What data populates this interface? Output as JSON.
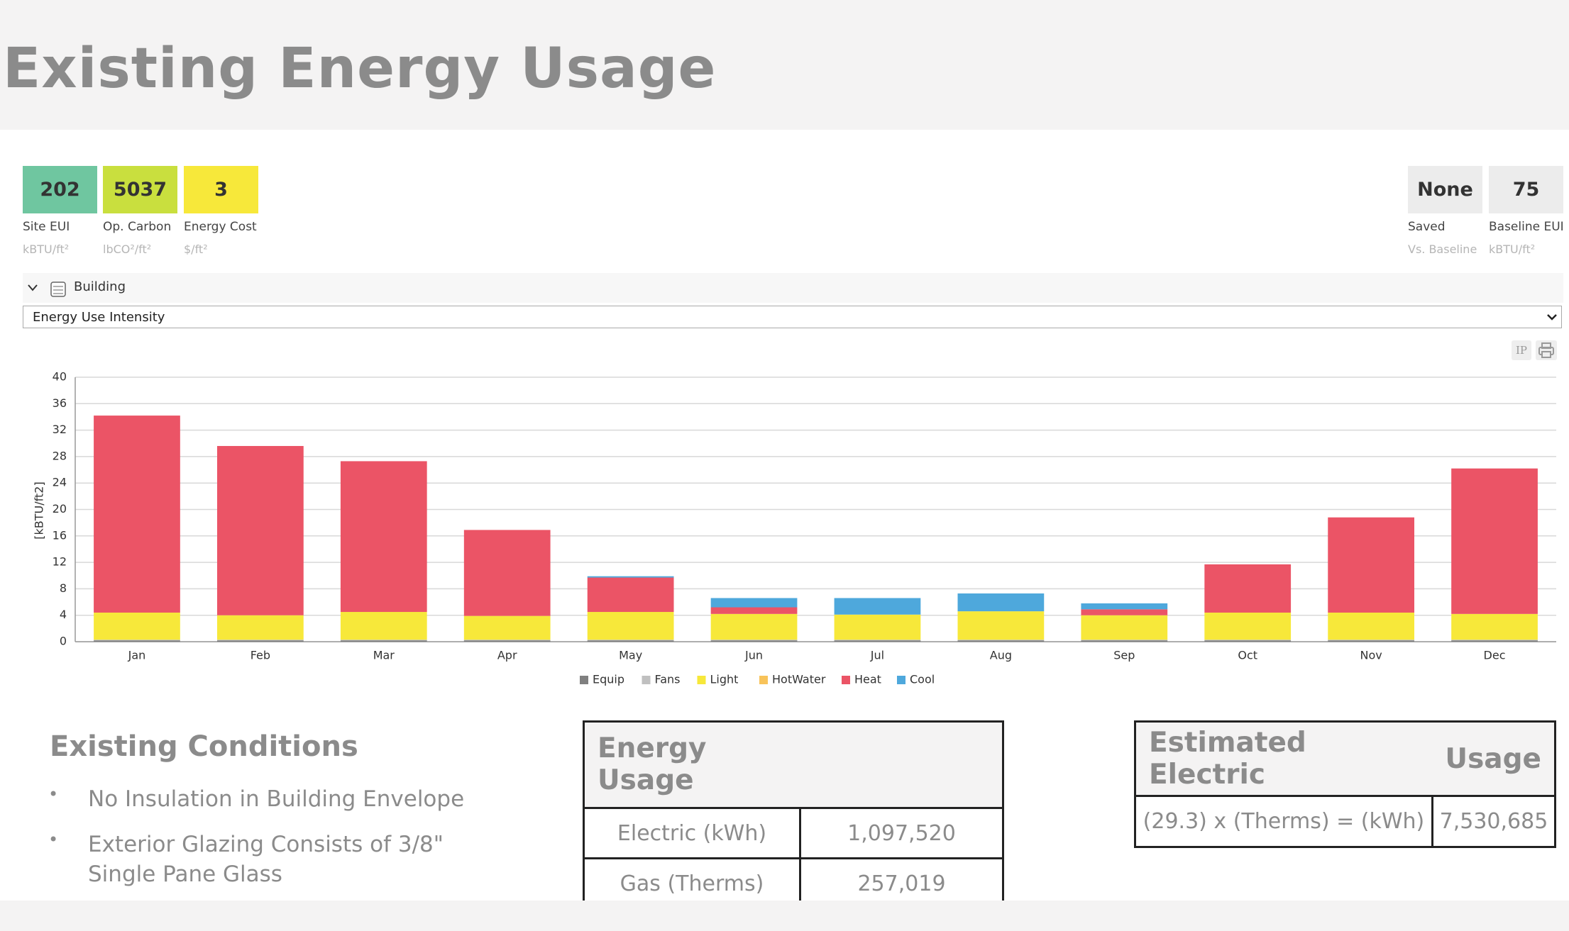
{
  "header": {
    "title": "Existing Energy Usage"
  },
  "metrics": {
    "left": [
      {
        "value": "202",
        "label": "Site EUI",
        "unit": "kBTU/ft²",
        "color": "#6fc6a0"
      },
      {
        "value": "5037",
        "label": "Op. Carbon",
        "unit": "lbCO²/ft²",
        "color": "#c9df3e"
      },
      {
        "value": "3",
        "label": "Energy Cost",
        "unit": "$/ft²",
        "color": "#f7e83a"
      }
    ],
    "right": [
      {
        "value": "None",
        "label": "Saved",
        "unit": "Vs. Baseline",
        "color": "#ececec"
      },
      {
        "value": "75",
        "label": "Baseline EUI",
        "unit": "kBTU/ft²",
        "color": "#ececec"
      }
    ]
  },
  "building": {
    "label": "Building"
  },
  "dropdown": {
    "selected": "Energy Use Intensity"
  },
  "toolbar": {
    "units": "IP"
  },
  "chart_data": {
    "type": "stacked_bar",
    "y_label": "[kBTU/ft2]",
    "categories": [
      "Jan",
      "Feb",
      "Mar",
      "Apr",
      "May",
      "Jun",
      "Jul",
      "Aug",
      "Sep",
      "Oct",
      "Nov",
      "Dec"
    ],
    "series": [
      {
        "name": "Equip",
        "color": "#808080",
        "values": [
          0.2,
          0.2,
          0.2,
          0.2,
          0.2,
          0.2,
          0.2,
          0.2,
          0.2,
          0.2,
          0.2,
          0.2
        ]
      },
      {
        "name": "Fans",
        "color": "#c0c0c0",
        "values": [
          0.1,
          0.1,
          0.1,
          0.1,
          0.1,
          0.1,
          0.1,
          0.1,
          0.1,
          0.1,
          0.1,
          0.1
        ]
      },
      {
        "name": "Light",
        "color": "#f7e83a",
        "values": [
          4.1,
          3.7,
          4.2,
          3.6,
          4.2,
          3.9,
          3.8,
          4.3,
          3.7,
          4.1,
          4.1,
          3.9
        ]
      },
      {
        "name": "HotWater",
        "color": "#f8c35a",
        "values": [
          0,
          0,
          0,
          0,
          0,
          0,
          0,
          0,
          0,
          0,
          0,
          0
        ]
      },
      {
        "name": "Heat",
        "color": "#eb5466",
        "values": [
          29.8,
          25.6,
          22.8,
          13.0,
          5.2,
          1.0,
          0,
          0,
          0.9,
          7.3,
          14.4,
          22.0
        ]
      },
      {
        "name": "Cool",
        "color": "#4ea8dc",
        "values": [
          0,
          0,
          0,
          0,
          0.2,
          1.4,
          2.5,
          2.7,
          0.9,
          0,
          0,
          0
        ]
      }
    ],
    "ylim": [
      0,
      40
    ],
    "yticks": [
      0,
      4,
      8,
      12,
      16,
      20,
      24,
      28,
      32,
      36,
      40
    ],
    "grid": true,
    "legend": "bottom"
  },
  "conditions": {
    "title": "Existing Conditions",
    "items": [
      "No Insulation in Building Envelope",
      "Exterior Glazing Consists of 3/8\" Single Pane Glass"
    ]
  },
  "energy_table": {
    "title": "Energy Usage",
    "rows": [
      [
        "Electric (kWh)",
        "1,097,520"
      ],
      [
        "Gas (Therms)",
        "257,019"
      ]
    ]
  },
  "electric_table": {
    "header": [
      "Estimated Electric",
      "Usage"
    ],
    "rows": [
      [
        "(29.3) x (Therms) = (kWh)",
        "7,530,685"
      ]
    ]
  }
}
